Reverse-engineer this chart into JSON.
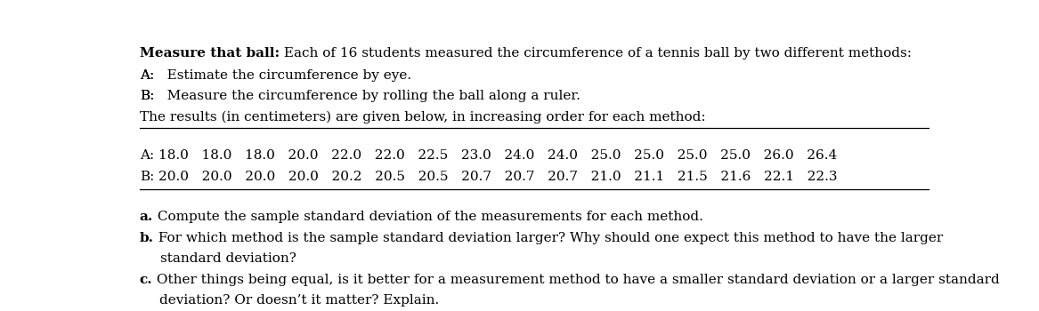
{
  "title_bold": "Measure that ball:",
  "title_rest": " Each of 16 students measured the circumference of a tennis ball by two different methods:",
  "line1_label": "A:",
  "line1_text": "   Estimate the circumference by eye.",
  "line2_label": "B:",
  "line2_text": "   Measure the circumference by rolling the ball along a ruler.",
  "line3": "The results (in centimeters) are given below, in increasing order for each method:",
  "row_A_label": "A:",
  "row_A_values": "18.0   18.0   18.0   20.0   22.0   22.0   22.5   23.0   24.0   24.0   25.0   25.0   25.0   25.0   26.0   26.4",
  "row_B_label": "B:",
  "row_B_values": "20.0   20.0   20.0   20.0   20.2   20.5   20.5   20.7   20.7   20.7   21.0   21.1   21.5   21.6   22.1   22.3",
  "qa_bold": "a.",
  "qa_text": " Compute the sample standard deviation of the measurements for each method.",
  "qb_bold": "b.",
  "qb_text1": " For which method is the sample standard deviation larger? Why should one expect this method to have the larger",
  "qb_text2": "standard deviation?",
  "qc_bold": "c.",
  "qc_text1": " Other things being equal, is it better for a measurement method to have a smaller standard deviation or a larger standard",
  "qc_text2": "deviation? Or doesn’t it matter? Explain.",
  "bg_color": "#ffffff",
  "text_color": "#000000",
  "font_size": 11.0
}
